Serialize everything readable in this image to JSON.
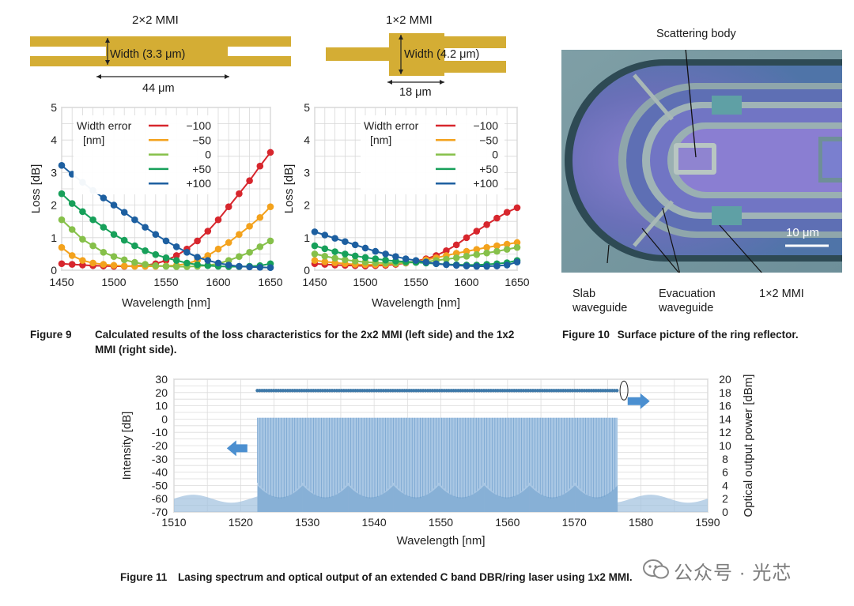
{
  "fig9": {
    "mmi2x2": {
      "label": "2×2 MMI",
      "width_label": "Width (3.3 μm)",
      "length_label": "44 μm"
    },
    "mmi1x2": {
      "label": "1×2 MMI",
      "width_label": "Width (4.2 μm)",
      "length_label": "18 μm"
    },
    "caption_number": "Figure 9",
    "caption_text": "Calculated results of the loss characteristics for the 2x2 MMI (left side) and the 1x2 MMI (right side)."
  },
  "fig10": {
    "labels": {
      "scattering": "Scattering body",
      "scalebar": "10 μm",
      "slab_1": "Slab",
      "slab_2": "waveguide",
      "evac_1": "Evacuation",
      "evac_2": "waveguide",
      "mmi": "1×2 MMI"
    },
    "caption_number": "Figure 10",
    "caption_text": "Surface picture of the ring reflector."
  },
  "fig11": {
    "caption_number": "Figure 11",
    "caption_text": "Lasing spectrum and optical output of an extended C band DBR/ring laser using 1x2 MMI."
  },
  "watermark": "公众号 · 光芯",
  "colors": {
    "minus100": "#d7262d",
    "minus50": "#f3a21d",
    "zero": "#86c04a",
    "plus50": "#17a05a",
    "plus100": "#1d5fa0",
    "mmi_gold": "#d4ad34",
    "spectrum": "#6c9dcb",
    "power": "#3d78a8",
    "arrow": "#4b8fd0"
  },
  "chart_data": [
    {
      "id": "fig9-left",
      "type": "line",
      "xlabel": "Wavelength [nm]",
      "ylabel": "Loss [dB]",
      "xlim": [
        1450,
        1650
      ],
      "ylim": [
        0,
        5
      ],
      "xticks": [
        1450,
        1500,
        1550,
        1600,
        1650
      ],
      "yticks": [
        0,
        1,
        2,
        3,
        4,
        5
      ],
      "grid": true,
      "legend_title": [
        "Width error",
        "[nm]"
      ],
      "legend_position": "top-left",
      "x": [
        1450,
        1460,
        1470,
        1480,
        1490,
        1500,
        1510,
        1520,
        1530,
        1540,
        1550,
        1560,
        1570,
        1580,
        1590,
        1600,
        1610,
        1620,
        1630,
        1640,
        1650
      ],
      "series": [
        {
          "name": "-100",
          "color_key": "minus100",
          "values": [
            0.2,
            0.18,
            0.16,
            0.14,
            0.13,
            0.12,
            0.12,
            0.13,
            0.15,
            0.2,
            0.3,
            0.45,
            0.65,
            0.9,
            1.2,
            1.55,
            1.95,
            2.35,
            2.75,
            3.2,
            3.62
          ]
        },
        {
          "name": "-50",
          "color_key": "minus50",
          "values": [
            0.7,
            0.45,
            0.3,
            0.22,
            0.18,
            0.15,
            0.13,
            0.12,
            0.12,
            0.12,
            0.13,
            0.15,
            0.2,
            0.3,
            0.45,
            0.65,
            0.85,
            1.1,
            1.35,
            1.62,
            1.95
          ]
        },
        {
          "name": "0",
          "color_key": "zero",
          "values": [
            1.55,
            1.25,
            0.95,
            0.75,
            0.55,
            0.42,
            0.32,
            0.24,
            0.18,
            0.14,
            0.12,
            0.11,
            0.11,
            0.12,
            0.15,
            0.2,
            0.3,
            0.42,
            0.55,
            0.72,
            0.9
          ]
        },
        {
          "name": "+50",
          "color_key": "plus50",
          "values": [
            2.35,
            2.05,
            1.8,
            1.55,
            1.32,
            1.1,
            0.92,
            0.75,
            0.6,
            0.48,
            0.38,
            0.3,
            0.22,
            0.17,
            0.14,
            0.12,
            0.11,
            0.11,
            0.12,
            0.14,
            0.2
          ]
        },
        {
          "name": "+100",
          "color_key": "plus100",
          "values": [
            3.22,
            2.95,
            2.7,
            2.45,
            2.22,
            2.0,
            1.78,
            1.55,
            1.32,
            1.1,
            0.9,
            0.72,
            0.55,
            0.4,
            0.3,
            0.22,
            0.16,
            0.12,
            0.1,
            0.09,
            0.08
          ]
        }
      ]
    },
    {
      "id": "fig9-right",
      "type": "line",
      "xlabel": "Wavelength [nm]",
      "ylabel": "Loss [dB]",
      "xlim": [
        1450,
        1650
      ],
      "ylim": [
        0,
        5
      ],
      "xticks": [
        1450,
        1500,
        1550,
        1600,
        1650
      ],
      "yticks": [
        0,
        1,
        2,
        3,
        4,
        5
      ],
      "grid": true,
      "legend_title": [
        "Width error",
        "[nm]"
      ],
      "legend_position": "top-right",
      "x": [
        1450,
        1460,
        1470,
        1480,
        1490,
        1500,
        1510,
        1520,
        1530,
        1540,
        1550,
        1560,
        1570,
        1580,
        1590,
        1600,
        1610,
        1620,
        1630,
        1640,
        1650
      ],
      "series": [
        {
          "name": "-100",
          "color_key": "minus100",
          "values": [
            0.2,
            0.18,
            0.16,
            0.15,
            0.14,
            0.13,
            0.14,
            0.15,
            0.18,
            0.22,
            0.28,
            0.35,
            0.45,
            0.6,
            0.78,
            1.0,
            1.2,
            1.4,
            1.6,
            1.78,
            1.92
          ]
        },
        {
          "name": "-50",
          "color_key": "minus50",
          "values": [
            0.3,
            0.26,
            0.23,
            0.2,
            0.18,
            0.17,
            0.17,
            0.18,
            0.2,
            0.23,
            0.27,
            0.32,
            0.38,
            0.45,
            0.52,
            0.58,
            0.64,
            0.7,
            0.75,
            0.8,
            0.85
          ]
        },
        {
          "name": "0",
          "color_key": "zero",
          "values": [
            0.5,
            0.43,
            0.37,
            0.32,
            0.28,
            0.25,
            0.23,
            0.22,
            0.22,
            0.23,
            0.24,
            0.26,
            0.3,
            0.34,
            0.38,
            0.43,
            0.48,
            0.53,
            0.58,
            0.64,
            0.7
          ]
        },
        {
          "name": "+50",
          "color_key": "plus50",
          "values": [
            0.75,
            0.66,
            0.57,
            0.5,
            0.44,
            0.39,
            0.35,
            0.31,
            0.28,
            0.26,
            0.24,
            0.22,
            0.2,
            0.18,
            0.17,
            0.16,
            0.16,
            0.18,
            0.2,
            0.23,
            0.3
          ]
        },
        {
          "name": "+100",
          "color_key": "plus100",
          "values": [
            1.18,
            1.08,
            0.98,
            0.88,
            0.78,
            0.68,
            0.58,
            0.5,
            0.42,
            0.35,
            0.3,
            0.25,
            0.2,
            0.17,
            0.15,
            0.13,
            0.12,
            0.12,
            0.13,
            0.16,
            0.25
          ]
        }
      ]
    },
    {
      "id": "fig11",
      "type": "area",
      "xlabel": "Wavelength [nm]",
      "ylabel": "Intensity [dB]",
      "y2label": "Optical output power [dBm]",
      "xlim": [
        1510,
        1590
      ],
      "ylim": [
        -70,
        30
      ],
      "y2lim": [
        0,
        20
      ],
      "xticks": [
        1510,
        1520,
        1530,
        1540,
        1550,
        1560,
        1570,
        1580,
        1590
      ],
      "yticks": [
        30,
        20,
        10,
        0,
        -10,
        -20,
        -30,
        -40,
        -50,
        -60,
        -70
      ],
      "y2ticks": [
        20,
        18,
        16,
        14,
        12,
        10,
        8,
        6,
        4,
        2,
        0
      ],
      "grid": true,
      "lasing_range": [
        1522.5,
        1576.5
      ],
      "peak_intensity": 1,
      "floor_intensity": -62,
      "power_trace": {
        "x_start": 1522.5,
        "x_end": 1576.5,
        "value": 18.3
      }
    }
  ]
}
